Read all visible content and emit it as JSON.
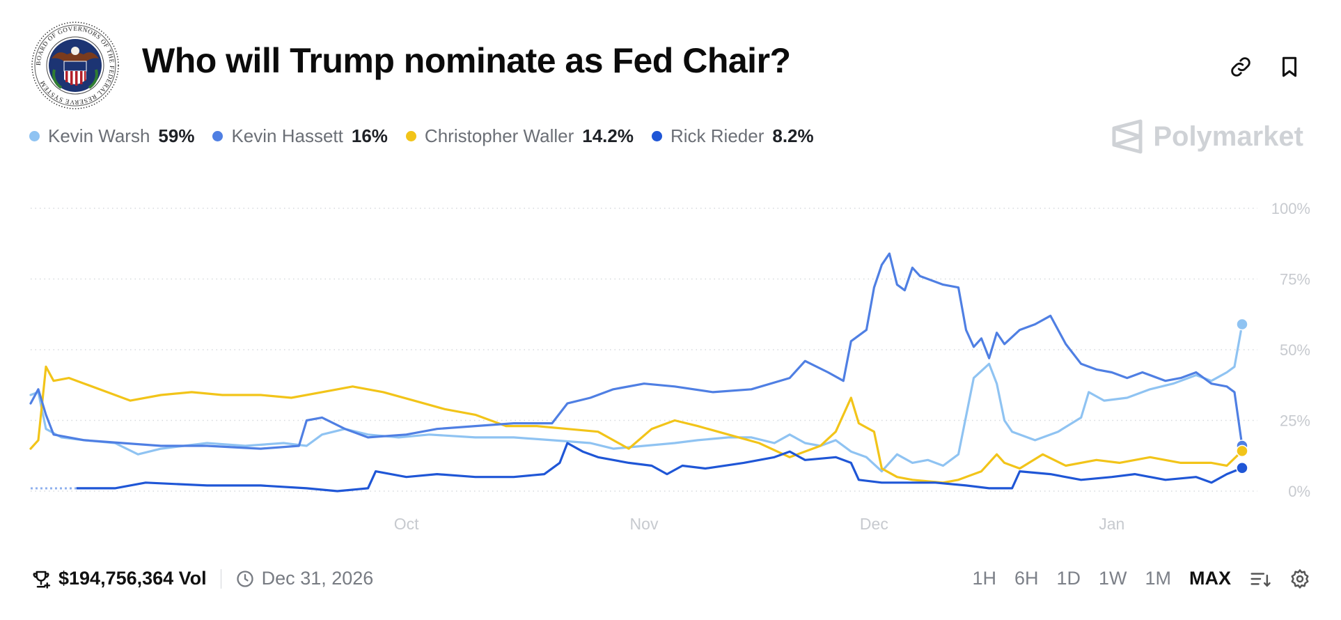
{
  "header": {
    "title": "Who will Trump nominate as Fed Chair?",
    "logo": {
      "name": "federal-reserve-seal",
      "ring_text": "BOARD OF GOVERNORS OF THE FEDERAL RESERVE SYSTEM",
      "colors": [
        "#1c3473",
        "#b3202a",
        "#7a3b1d"
      ]
    },
    "actions": [
      {
        "icon": "link-icon"
      },
      {
        "icon": "bookmark-icon"
      }
    ]
  },
  "legend": [
    {
      "name": "Kevin Warsh",
      "pct": "59%",
      "color": "#8fc3f2"
    },
    {
      "name": "Kevin Hassett",
      "pct": "16%",
      "color": "#4f7fe3"
    },
    {
      "name": "Christopher Waller",
      "pct": "14.2%",
      "color": "#f2c419"
    },
    {
      "name": "Rick Rieder",
      "pct": "8.2%",
      "color": "#1f56d6"
    }
  ],
  "watermark": {
    "text": "Polymarket",
    "icon": "polymarket-logo-icon"
  },
  "footer": {
    "volume": "$194,756,364 Vol",
    "volume_icon": "trophy-icon",
    "end_date": "Dec 31, 2026",
    "end_date_icon": "clock-icon",
    "ranges": [
      "1H",
      "6H",
      "1D",
      "1W",
      "1M",
      "MAX"
    ],
    "active_range": "MAX",
    "controls": [
      {
        "icon": "sort-lines-icon"
      },
      {
        "icon": "settings-gear-icon"
      }
    ]
  },
  "chart_data": {
    "type": "line",
    "title": "",
    "x_axis": {
      "type": "date",
      "domain": [
        "2025-08-13",
        "2026-01-20"
      ],
      "ticks": [
        {
          "label": "Oct",
          "date": "2025-10-01"
        },
        {
          "label": "Nov",
          "date": "2025-11-01"
        },
        {
          "label": "Dec",
          "date": "2025-12-01"
        },
        {
          "label": "Jan",
          "date": "2026-01-01"
        }
      ]
    },
    "y_axis": {
      "range": [
        0,
        100
      ],
      "ticks": [
        0,
        25,
        50,
        75,
        100
      ],
      "tick_labels": [
        "0%",
        "25%",
        "50%",
        "75%",
        "100%"
      ],
      "side": "right"
    },
    "grid": "horizontal-dotted",
    "series": [
      {
        "name": "Kevin Warsh",
        "color": "#8fc3f2",
        "points": [
          [
            "2025-08-13",
            34
          ],
          [
            "2025-08-14",
            35
          ],
          [
            "2025-08-15",
            22
          ],
          [
            "2025-08-17",
            19
          ],
          [
            "2025-08-20",
            18
          ],
          [
            "2025-08-24",
            17
          ],
          [
            "2025-08-27",
            13
          ],
          [
            "2025-08-30",
            15
          ],
          [
            "2025-09-02",
            16
          ],
          [
            "2025-09-05",
            17
          ],
          [
            "2025-09-10",
            16
          ],
          [
            "2025-09-15",
            17
          ],
          [
            "2025-09-18",
            16
          ],
          [
            "2025-09-20",
            20
          ],
          [
            "2025-09-23",
            22
          ],
          [
            "2025-09-26",
            20
          ],
          [
            "2025-09-30",
            19
          ],
          [
            "2025-10-04",
            20
          ],
          [
            "2025-10-10",
            19
          ],
          [
            "2025-10-15",
            19
          ],
          [
            "2025-10-20",
            18
          ],
          [
            "2025-10-25",
            17
          ],
          [
            "2025-10-28",
            15
          ],
          [
            "2025-11-01",
            16
          ],
          [
            "2025-11-05",
            17
          ],
          [
            "2025-11-08",
            18
          ],
          [
            "2025-11-12",
            19
          ],
          [
            "2025-11-15",
            19
          ],
          [
            "2025-11-18",
            17
          ],
          [
            "2025-11-20",
            20
          ],
          [
            "2025-11-22",
            17
          ],
          [
            "2025-11-24",
            16
          ],
          [
            "2025-11-26",
            18
          ],
          [
            "2025-11-28",
            14
          ],
          [
            "2025-11-30",
            12
          ],
          [
            "2025-12-02",
            7
          ],
          [
            "2025-12-04",
            13
          ],
          [
            "2025-12-06",
            10
          ],
          [
            "2025-12-08",
            11
          ],
          [
            "2025-12-10",
            9
          ],
          [
            "2025-12-12",
            13
          ],
          [
            "2025-12-14",
            40
          ],
          [
            "2025-12-16",
            45
          ],
          [
            "2025-12-17",
            38
          ],
          [
            "2025-12-18",
            25
          ],
          [
            "2025-12-19",
            21
          ],
          [
            "2025-12-22",
            18
          ],
          [
            "2025-12-25",
            21
          ],
          [
            "2025-12-28",
            26
          ],
          [
            "2025-12-29",
            35
          ],
          [
            "2025-12-31",
            32
          ],
          [
            "2026-01-03",
            33
          ],
          [
            "2026-01-06",
            36
          ],
          [
            "2026-01-09",
            38
          ],
          [
            "2026-01-12",
            41
          ],
          [
            "2026-01-14",
            39
          ],
          [
            "2026-01-16",
            42
          ],
          [
            "2026-01-17",
            44
          ],
          [
            "2026-01-18",
            59
          ]
        ]
      },
      {
        "name": "Kevin Hassett",
        "color": "#4f7fe3",
        "points": [
          [
            "2025-08-13",
            31
          ],
          [
            "2025-08-14",
            36
          ],
          [
            "2025-08-15",
            27
          ],
          [
            "2025-08-16",
            20
          ],
          [
            "2025-08-20",
            18
          ],
          [
            "2025-08-25",
            17
          ],
          [
            "2025-08-30",
            16
          ],
          [
            "2025-09-05",
            16
          ],
          [
            "2025-09-12",
            15
          ],
          [
            "2025-09-17",
            16
          ],
          [
            "2025-09-18",
            25
          ],
          [
            "2025-09-20",
            26
          ],
          [
            "2025-09-23",
            22
          ],
          [
            "2025-09-26",
            19
          ],
          [
            "2025-10-01",
            20
          ],
          [
            "2025-10-05",
            22
          ],
          [
            "2025-10-10",
            23
          ],
          [
            "2025-10-15",
            24
          ],
          [
            "2025-10-20",
            24
          ],
          [
            "2025-10-22",
            31
          ],
          [
            "2025-10-25",
            33
          ],
          [
            "2025-10-28",
            36
          ],
          [
            "2025-11-01",
            38
          ],
          [
            "2025-11-05",
            37
          ],
          [
            "2025-11-10",
            35
          ],
          [
            "2025-11-15",
            36
          ],
          [
            "2025-11-20",
            40
          ],
          [
            "2025-11-22",
            46
          ],
          [
            "2025-11-25",
            42
          ],
          [
            "2025-11-27",
            39
          ],
          [
            "2025-11-28",
            53
          ],
          [
            "2025-11-30",
            57
          ],
          [
            "2025-12-01",
            72
          ],
          [
            "2025-12-02",
            80
          ],
          [
            "2025-12-03",
            84
          ],
          [
            "2025-12-04",
            73
          ],
          [
            "2025-12-05",
            71
          ],
          [
            "2025-12-06",
            79
          ],
          [
            "2025-12-07",
            76
          ],
          [
            "2025-12-10",
            73
          ],
          [
            "2025-12-12",
            72
          ],
          [
            "2025-12-13",
            57
          ],
          [
            "2025-12-14",
            51
          ],
          [
            "2025-12-15",
            54
          ],
          [
            "2025-12-16",
            47
          ],
          [
            "2025-12-17",
            56
          ],
          [
            "2025-12-18",
            52
          ],
          [
            "2025-12-20",
            57
          ],
          [
            "2025-12-22",
            59
          ],
          [
            "2025-12-24",
            62
          ],
          [
            "2025-12-26",
            52
          ],
          [
            "2025-12-28",
            45
          ],
          [
            "2025-12-30",
            43
          ],
          [
            "2026-01-01",
            42
          ],
          [
            "2026-01-03",
            40
          ],
          [
            "2026-01-05",
            42
          ],
          [
            "2026-01-08",
            39
          ],
          [
            "2026-01-10",
            40
          ],
          [
            "2026-01-12",
            42
          ],
          [
            "2026-01-14",
            38
          ],
          [
            "2026-01-16",
            37
          ],
          [
            "2026-01-17",
            35
          ],
          [
            "2026-01-18",
            16
          ]
        ]
      },
      {
        "name": "Christopher Waller",
        "color": "#f2c419",
        "points": [
          [
            "2025-08-13",
            15
          ],
          [
            "2025-08-14",
            18
          ],
          [
            "2025-08-15",
            44
          ],
          [
            "2025-08-16",
            39
          ],
          [
            "2025-08-18",
            40
          ],
          [
            "2025-08-20",
            38
          ],
          [
            "2025-08-23",
            35
          ],
          [
            "2025-08-26",
            32
          ],
          [
            "2025-08-30",
            34
          ],
          [
            "2025-09-03",
            35
          ],
          [
            "2025-09-07",
            34
          ],
          [
            "2025-09-12",
            34
          ],
          [
            "2025-09-16",
            33
          ],
          [
            "2025-09-20",
            35
          ],
          [
            "2025-09-24",
            37
          ],
          [
            "2025-09-28",
            35
          ],
          [
            "2025-10-02",
            32
          ],
          [
            "2025-10-06",
            29
          ],
          [
            "2025-10-10",
            27
          ],
          [
            "2025-10-14",
            23
          ],
          [
            "2025-10-18",
            23
          ],
          [
            "2025-10-22",
            22
          ],
          [
            "2025-10-26",
            21
          ],
          [
            "2025-10-30",
            15
          ],
          [
            "2025-11-02",
            22
          ],
          [
            "2025-11-05",
            25
          ],
          [
            "2025-11-08",
            23
          ],
          [
            "2025-11-12",
            20
          ],
          [
            "2025-11-16",
            17
          ],
          [
            "2025-11-20",
            12
          ],
          [
            "2025-11-24",
            16
          ],
          [
            "2025-11-26",
            21
          ],
          [
            "2025-11-28",
            33
          ],
          [
            "2025-11-29",
            24
          ],
          [
            "2025-12-01",
            21
          ],
          [
            "2025-12-02",
            8
          ],
          [
            "2025-12-04",
            5
          ],
          [
            "2025-12-06",
            4
          ],
          [
            "2025-12-10",
            3
          ],
          [
            "2025-12-12",
            4
          ],
          [
            "2025-12-15",
            7
          ],
          [
            "2025-12-17",
            13
          ],
          [
            "2025-12-18",
            10
          ],
          [
            "2025-12-20",
            8
          ],
          [
            "2025-12-23",
            13
          ],
          [
            "2025-12-26",
            9
          ],
          [
            "2025-12-30",
            11
          ],
          [
            "2026-01-02",
            10
          ],
          [
            "2026-01-06",
            12
          ],
          [
            "2026-01-10",
            10
          ],
          [
            "2026-01-14",
            10
          ],
          [
            "2026-01-16",
            9
          ],
          [
            "2026-01-18",
            14.2
          ]
        ]
      },
      {
        "name": "Rick Rieder",
        "color": "#1f56d6",
        "points": [
          [
            "2025-08-19",
            1
          ],
          [
            "2025-08-24",
            1
          ],
          [
            "2025-08-28",
            3
          ],
          [
            "2025-09-05",
            2
          ],
          [
            "2025-09-12",
            2
          ],
          [
            "2025-09-18",
            1
          ],
          [
            "2025-09-22",
            0
          ],
          [
            "2025-09-26",
            1
          ],
          [
            "2025-09-27",
            7
          ],
          [
            "2025-10-01",
            5
          ],
          [
            "2025-10-05",
            6
          ],
          [
            "2025-10-10",
            5
          ],
          [
            "2025-10-15",
            5
          ],
          [
            "2025-10-19",
            6
          ],
          [
            "2025-10-21",
            10
          ],
          [
            "2025-10-22",
            17
          ],
          [
            "2025-10-24",
            14
          ],
          [
            "2025-10-26",
            12
          ],
          [
            "2025-10-30",
            10
          ],
          [
            "2025-11-02",
            9
          ],
          [
            "2025-11-04",
            6
          ],
          [
            "2025-11-06",
            9
          ],
          [
            "2025-11-09",
            8
          ],
          [
            "2025-11-14",
            10
          ],
          [
            "2025-11-18",
            12
          ],
          [
            "2025-11-20",
            14
          ],
          [
            "2025-11-22",
            11
          ],
          [
            "2025-11-26",
            12
          ],
          [
            "2025-11-28",
            10
          ],
          [
            "2025-11-29",
            4
          ],
          [
            "2025-12-02",
            3
          ],
          [
            "2025-12-05",
            3
          ],
          [
            "2025-12-09",
            3
          ],
          [
            "2025-12-13",
            2
          ],
          [
            "2025-12-16",
            1
          ],
          [
            "2025-12-19",
            1
          ],
          [
            "2025-12-20",
            7
          ],
          [
            "2025-12-24",
            6
          ],
          [
            "2025-12-28",
            4
          ],
          [
            "2026-01-01",
            5
          ],
          [
            "2026-01-04",
            6
          ],
          [
            "2026-01-08",
            4
          ],
          [
            "2026-01-12",
            5
          ],
          [
            "2026-01-14",
            3
          ],
          [
            "2026-01-16",
            6
          ],
          [
            "2026-01-18",
            8.2
          ]
        ]
      }
    ]
  }
}
